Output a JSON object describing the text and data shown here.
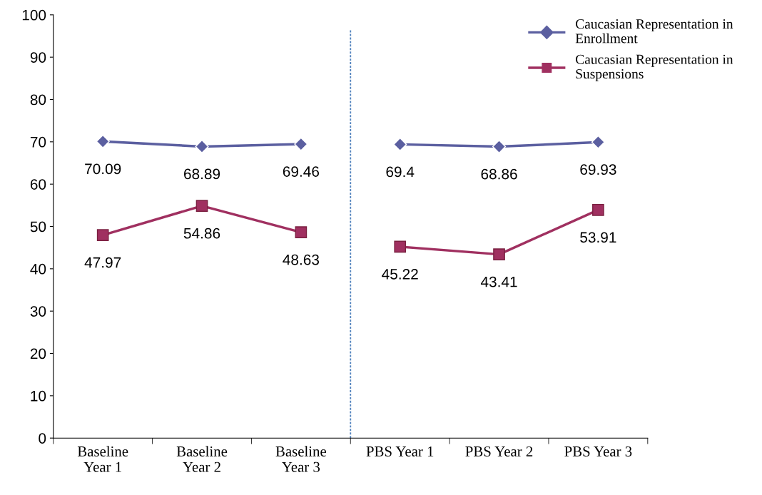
{
  "chart_data": {
    "type": "line",
    "categories": [
      "Baseline\nYear 1",
      "Baseline\nYear 2",
      "Baseline\nYear 3",
      "PBS Year 1",
      "PBS Year 2",
      "PBS Year 3"
    ],
    "series": [
      {
        "name": "Caucasian Representation in\nEnrollment",
        "color": "#5b5fa0",
        "marker": "diamond",
        "values": [
          70.09,
          68.89,
          69.46,
          69.4,
          68.86,
          69.93
        ]
      },
      {
        "name": "Caucasian Representation in\nSuspensions",
        "color": "#a03060",
        "marker": "square",
        "values": [
          47.97,
          54.86,
          48.63,
          45.22,
          43.41,
          53.91
        ]
      }
    ],
    "ylim": [
      0,
      100
    ],
    "yticks": [
      0,
      10,
      20,
      30,
      40,
      50,
      60,
      70,
      80,
      90,
      100
    ],
    "data_labels": true,
    "grid": false,
    "legend": "top right"
  }
}
